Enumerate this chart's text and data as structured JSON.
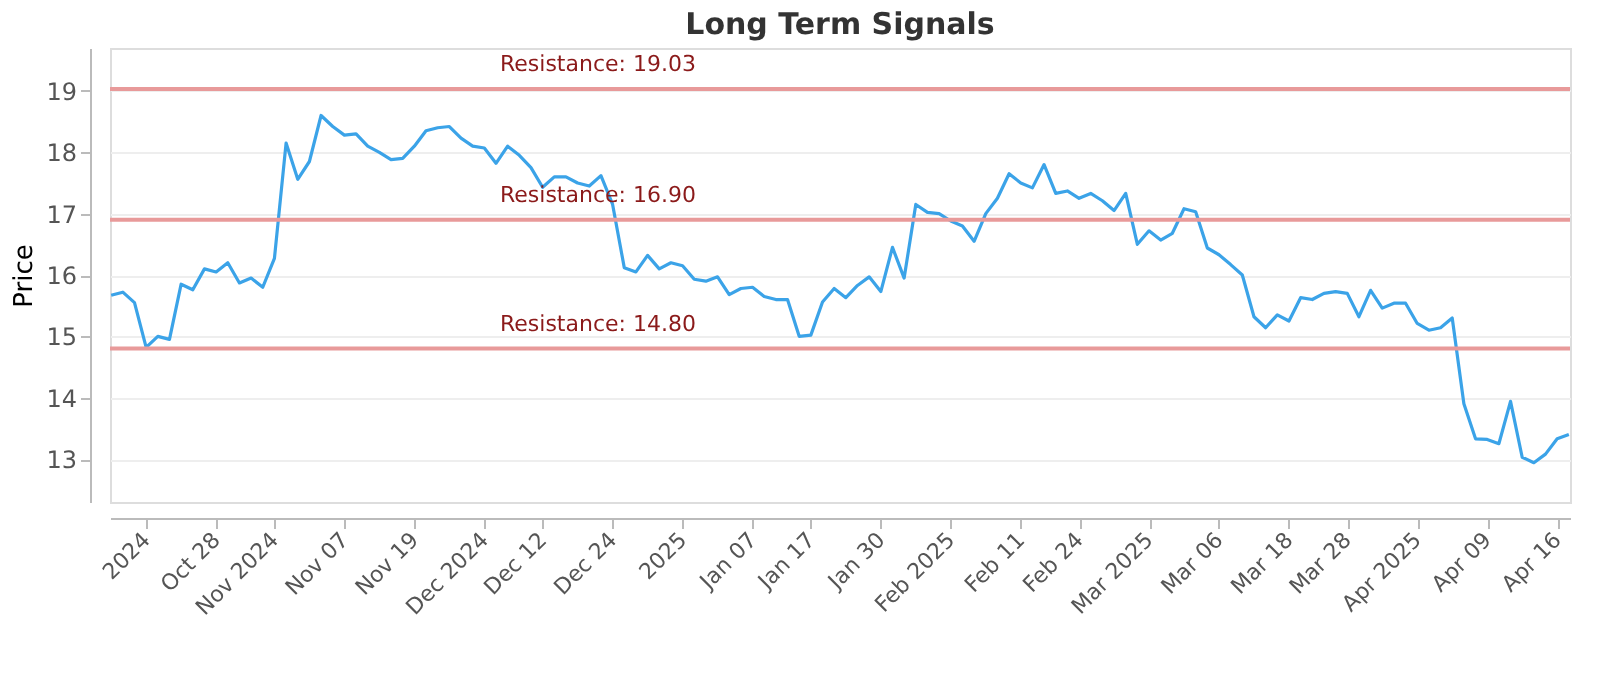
{
  "chart_data": {
    "type": "line",
    "title": "Long Term Signals",
    "ylabel": "Price",
    "categories": [
      null,
      null,
      null,
      "2024",
      null,
      null,
      null,
      null,
      null,
      "Oct 28",
      null,
      null,
      null,
      null,
      "Nov 2024",
      null,
      null,
      null,
      null,
      null,
      "Nov 07",
      null,
      null,
      null,
      null,
      null,
      "Nov 19",
      null,
      null,
      null,
      null,
      null,
      "Dec 2024",
      null,
      null,
      null,
      null,
      "Dec 12",
      null,
      null,
      null,
      null,
      null,
      "Dec 24",
      null,
      null,
      null,
      null,
      null,
      "2025",
      null,
      null,
      null,
      null,
      null,
      "Jan 07",
      null,
      null,
      null,
      null,
      "Jan 17",
      null,
      null,
      null,
      null,
      null,
      "Jan 30",
      null,
      null,
      null,
      null,
      null,
      "Feb 2025",
      null,
      null,
      null,
      null,
      null,
      "Feb 11",
      null,
      null,
      null,
      null,
      "Feb 24",
      null,
      null,
      null,
      null,
      null,
      "Mar 2025",
      null,
      null,
      null,
      null,
      null,
      "Mar 06",
      null,
      null,
      null,
      null,
      null,
      "Mar 18",
      null,
      null,
      null,
      null,
      "Mar 28",
      null,
      null,
      null,
      null,
      null,
      "Apr 2025",
      null,
      null,
      null,
      null,
      null,
      "Apr 09",
      null,
      null,
      null,
      null,
      null,
      "Apr 16",
      null
    ],
    "series": [
      {
        "color": "#3ba3e8",
        "values": [
          15.67,
          15.72,
          15.55,
          14.82,
          15.0,
          14.95,
          15.85,
          15.76,
          16.1,
          16.05,
          16.2,
          15.87,
          15.95,
          15.8,
          16.27,
          18.15,
          17.56,
          17.85,
          18.6,
          18.42,
          18.28,
          18.3,
          18.1,
          18.0,
          17.88,
          17.9,
          18.1,
          18.35,
          18.4,
          18.42,
          18.23,
          18.1,
          18.07,
          17.82,
          18.1,
          17.95,
          17.75,
          17.43,
          17.6,
          17.6,
          17.5,
          17.45,
          17.62,
          17.15,
          16.12,
          16.05,
          16.32,
          16.1,
          16.2,
          16.15,
          15.93,
          15.9,
          15.97,
          15.68,
          15.78,
          15.8,
          15.65,
          15.6,
          15.6,
          15.0,
          15.02,
          15.56,
          15.78,
          15.63,
          15.83,
          15.97,
          15.73,
          16.45,
          15.95,
          17.15,
          17.02,
          17.0,
          16.88,
          16.8,
          16.55,
          17.0,
          17.25,
          17.65,
          17.5,
          17.42,
          17.8,
          17.33,
          17.37,
          17.25,
          17.33,
          17.21,
          17.05,
          17.33,
          16.5,
          16.72,
          16.57,
          16.68,
          17.08,
          17.03,
          16.44,
          16.33,
          16.17,
          16.0,
          15.32,
          15.14,
          15.35,
          15.25,
          15.63,
          15.6,
          15.7,
          15.73,
          15.7,
          15.32,
          15.75,
          15.46,
          15.54,
          15.54,
          15.21,
          15.1,
          15.14,
          15.3,
          13.9,
          13.33,
          13.32,
          13.25,
          13.94,
          13.03,
          12.94,
          13.08,
          13.33,
          13.4
        ]
      }
    ],
    "ylim": [
      12.3,
      19.7
    ],
    "yticks": [
      13,
      14,
      15,
      16,
      17,
      18,
      19
    ],
    "grid": "y",
    "marker": "none",
    "line_style": "solid",
    "ref_lines": [
      {
        "axis": "y",
        "value": 19.03,
        "label": "Resistance: 19.03",
        "color": "#e89a9a"
      },
      {
        "axis": "y",
        "value": 16.9,
        "label": "Resistance: 16.90",
        "color": "#e89a9a"
      },
      {
        "axis": "y",
        "value": 14.8,
        "label": "Resistance: 14.80",
        "color": "#e89a9a"
      }
    ]
  }
}
